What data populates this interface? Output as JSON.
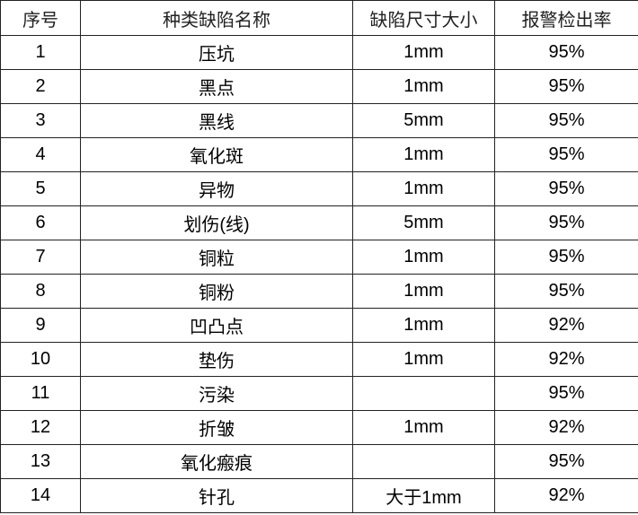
{
  "table": {
    "headers": [
      "序号",
      "种类缺陷名称",
      "缺陷尺寸大小",
      "报警检出率"
    ],
    "rows": [
      [
        "1",
        "压坑",
        "1mm",
        "95%"
      ],
      [
        "2",
        "黑点",
        "1mm",
        "95%"
      ],
      [
        "3",
        "黑线",
        "5mm",
        "95%"
      ],
      [
        "4",
        "氧化斑",
        "1mm",
        "95%"
      ],
      [
        "5",
        "异物",
        "1mm",
        "95%"
      ],
      [
        "6",
        "划伤(线)",
        "5mm",
        "95%"
      ],
      [
        "7",
        "铜粒",
        "1mm",
        "95%"
      ],
      [
        "8",
        "铜粉",
        "1mm",
        "95%"
      ],
      [
        "9",
        "凹凸点",
        "1mm",
        "92%"
      ],
      [
        "10",
        "垫伤",
        "1mm",
        "92%"
      ],
      [
        "11",
        "污染",
        "",
        "95%"
      ],
      [
        "12",
        "折皱",
        "1mm",
        "92%"
      ],
      [
        "13",
        "氧化瘢痕",
        "",
        "95%"
      ],
      [
        "14",
        "针孔",
        "大于1mm",
        "92%"
      ]
    ]
  }
}
